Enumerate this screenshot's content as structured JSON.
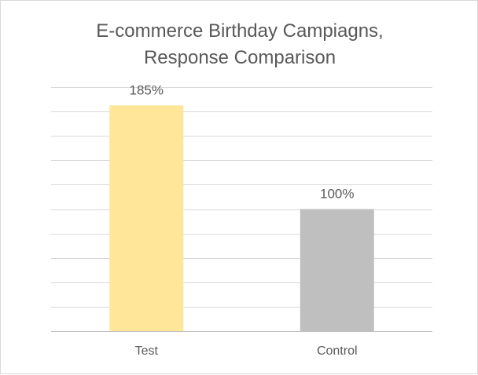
{
  "chart_data": {
    "type": "bar",
    "title_lines": [
      "E-commerce Birthday Campiagns,",
      "Response Comparison"
    ],
    "categories": [
      "Test",
      "Control"
    ],
    "values": [
      185,
      100
    ],
    "data_labels": [
      "185%",
      "100%"
    ],
    "bar_colors": [
      "#ffe699",
      "#bfbfbf"
    ],
    "ylim": [
      0,
      200
    ],
    "gridlines": true,
    "gridline_color": "#d9d9d9",
    "axis_color": "#bfbfbf",
    "xlabel": "",
    "ylabel": ""
  }
}
